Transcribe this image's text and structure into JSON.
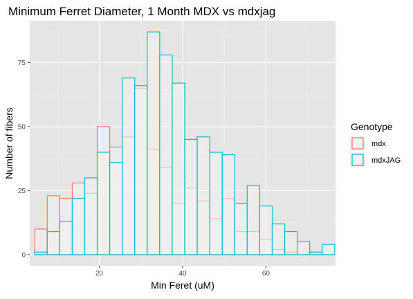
{
  "chart_data": {
    "type": "bar",
    "title": "Minimum Ferret Diameter, 1 Month MDX vs mdxjag",
    "xlabel": "Min Feret (uM)",
    "ylabel": "Number of fibers",
    "xlim": [
      3.3,
      76.7
    ],
    "ylim": [
      -4.35,
      91.35
    ],
    "xticks": [
      20,
      40,
      60
    ],
    "xtick_labels": [
      "20",
      "40",
      "60"
    ],
    "yticks": [
      0,
      25,
      50,
      75
    ],
    "ytick_labels": [
      "0",
      "25",
      "50",
      "75"
    ],
    "grid": true,
    "background": "#E5E5E5",
    "legend": {
      "title": "Genotype",
      "position": "right",
      "entries": [
        "mdx",
        "mdxJAG"
      ]
    },
    "bin_edges": [
      4.5,
      7.5,
      10.5,
      13.5,
      16.5,
      19.5,
      22.5,
      25.5,
      28.5,
      31.5,
      34.5,
      37.5,
      40.5,
      43.5,
      46.5,
      49.5,
      52.5,
      55.5,
      58.5,
      61.5,
      64.5,
      67.5,
      70.5,
      73.5,
      76.5
    ],
    "series": [
      {
        "name": "mdx",
        "color": "#F8766D",
        "fill": "#F2F2F2",
        "values": [
          10,
          23,
          22,
          28,
          24,
          50,
          42,
          46,
          65,
          41,
          34,
          20,
          26,
          21,
          14,
          22,
          9,
          9,
          6,
          2,
          1,
          0,
          1,
          0
        ]
      },
      {
        "name": "mdxJAG",
        "color": "#00BFC4",
        "fill": "#F2F2F2",
        "values": [
          1,
          9,
          13,
          22,
          30,
          40,
          36,
          69,
          66,
          87,
          78,
          67,
          45,
          46,
          40,
          39,
          20,
          27,
          19,
          12,
          9,
          5,
          1,
          4
        ]
      }
    ]
  }
}
